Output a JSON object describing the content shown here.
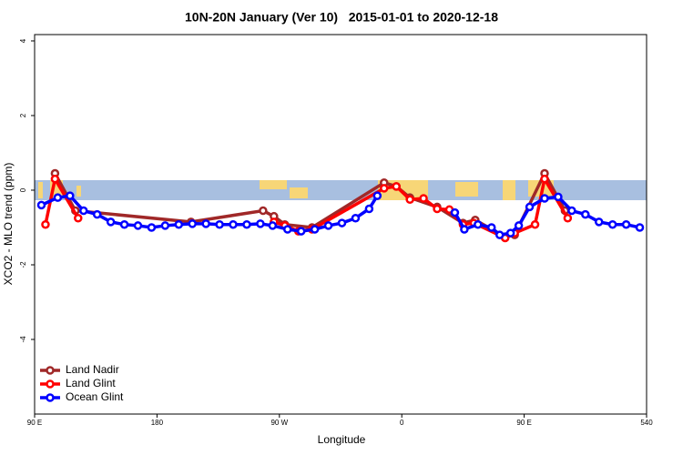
{
  "chart_data": {
    "type": "line",
    "title": "10N-20N January (Ver 10)   2015-01-01 to 2020-12-18",
    "x_label": "Longitude",
    "y_label": "XCO2 - MLO trend (ppm)",
    "xlim": [
      90,
      540
    ],
    "ylim": [
      -6,
      4.17
    ],
    "xticks": [
      {
        "value": 90,
        "label": "90 E"
      },
      180,
      {
        "value": 270,
        "label": "90 W"
      },
      {
        "value": 360,
        "label": "0"
      },
      {
        "value": 450,
        "label": "90 E"
      },
      540
    ],
    "yticks": [
      4,
      2,
      0,
      -2,
      -4
    ],
    "legend": "bottom-left",
    "series": [
      {
        "name": "Land Nadir",
        "color": "#a02828",
        "x": [
          105,
          120,
          205,
          258,
          266,
          274,
          294,
          347,
          356,
          366,
          386,
          405,
          414,
          436,
          443,
          465,
          480
        ],
        "values": [
          0.45,
          -0.55,
          -0.85,
          -0.55,
          -0.7,
          -0.92,
          -1.0,
          0.2,
          0.1,
          -0.2,
          -0.45,
          -0.88,
          -0.8,
          -1.25,
          -1.2,
          0.45,
          -0.55
        ]
      },
      {
        "name": "Land Glint",
        "color": "#ff0000",
        "x": [
          98,
          105,
          122,
          259,
          266,
          274,
          284,
          294,
          347,
          356,
          366,
          376,
          386,
          395,
          405,
          413,
          436,
          443,
          458,
          465,
          482
        ],
        "values": [
          -0.92,
          0.3,
          -0.75,
          null,
          -0.85,
          -0.95,
          -1.1,
          -1.05,
          0.05,
          0.1,
          -0.25,
          -0.22,
          -0.5,
          -0.52,
          -0.92,
          -0.88,
          -1.28,
          -1.15,
          -0.92,
          0.3,
          -0.75
        ]
      },
      {
        "name": "Ocean Glint",
        "color": "#0000ff",
        "x": [
          95,
          107,
          116,
          126,
          136,
          146,
          156,
          166,
          176,
          186,
          196,
          206,
          216,
          226,
          236,
          246,
          256,
          265,
          276,
          286,
          296,
          306,
          316,
          326,
          336,
          342,
          370,
          399,
          406,
          416,
          426,
          432,
          440,
          446,
          454,
          465,
          475,
          485,
          495,
          505,
          515,
          525,
          535
        ],
        "values": [
          -0.4,
          -0.2,
          -0.15,
          -0.55,
          -0.65,
          -0.85,
          -0.92,
          -0.95,
          -1.0,
          -0.95,
          -0.92,
          -0.9,
          -0.9,
          -0.92,
          -0.92,
          -0.92,
          -0.9,
          -0.95,
          -1.05,
          -1.1,
          -1.05,
          -0.95,
          -0.88,
          -0.75,
          -0.5,
          -0.15,
          null,
          -0.6,
          -1.05,
          -0.92,
          -1.0,
          -1.2,
          -1.15,
          -0.95,
          -0.45,
          -0.22,
          -0.18,
          -0.55,
          -0.65,
          -0.85,
          -0.92,
          -0.92,
          -1.0
        ]
      }
    ]
  }
}
